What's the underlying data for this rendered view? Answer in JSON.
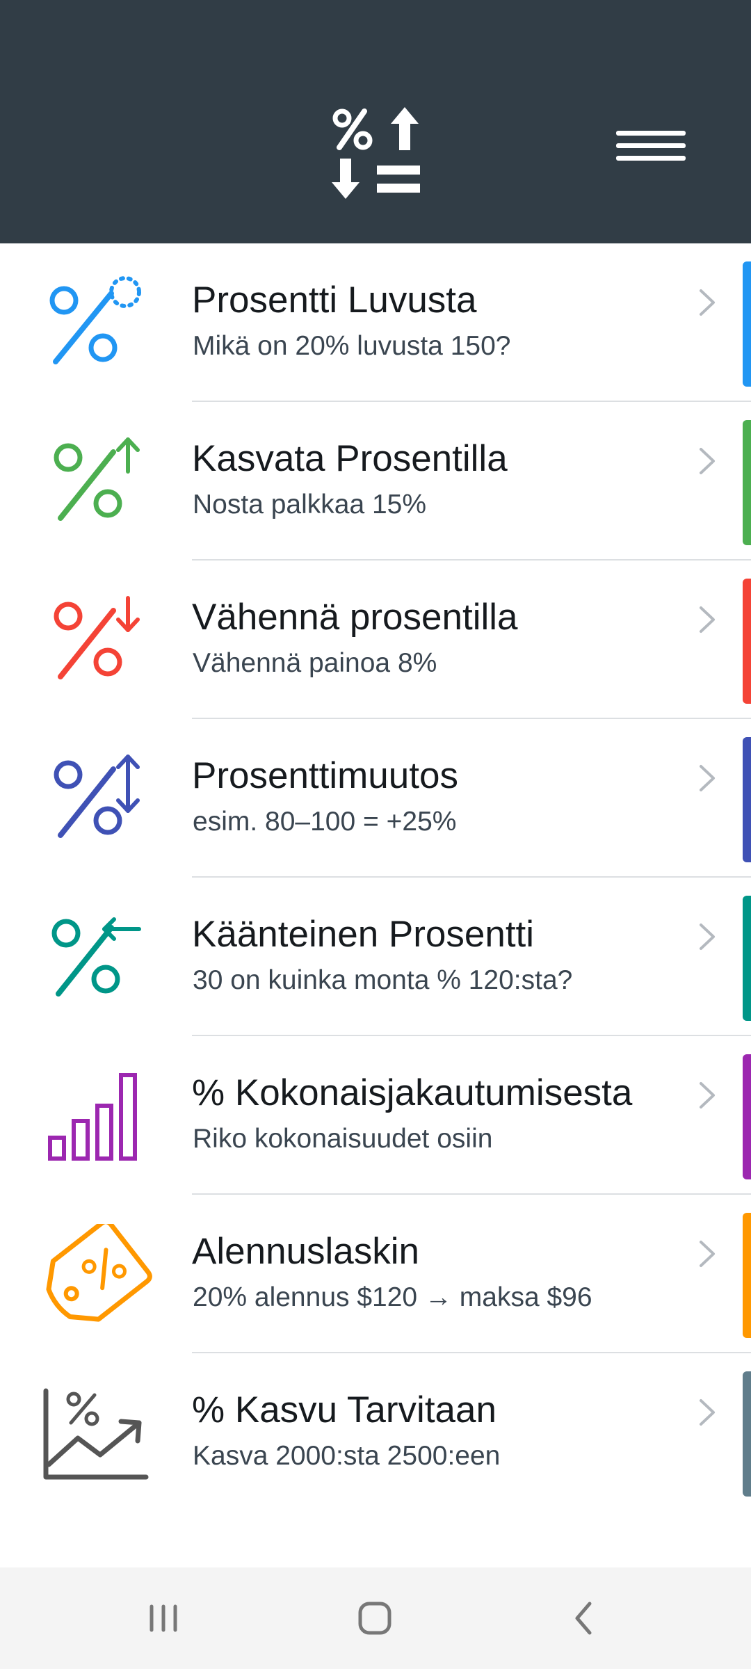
{
  "header": {
    "logo_icon": "percent-up-down-equals-icon",
    "menu_icon": "hamburger-menu-icon",
    "background": "#313d46"
  },
  "items": [
    {
      "title": "Prosentti Luvusta",
      "subtitle": "Mikä on 20% luvusta 150?",
      "accent": "#2196f3",
      "icon": "percent-of-icon"
    },
    {
      "title": "Kasvata Prosentilla",
      "subtitle": "Nosta palkkaa 15%",
      "accent": "#4caf50",
      "icon": "percent-increase-icon"
    },
    {
      "title": "Vähennä prosentilla",
      "subtitle": "Vähennä painoa 8%",
      "accent": "#f44336",
      "icon": "percent-decrease-icon"
    },
    {
      "title": "Prosenttimuutos",
      "subtitle": "esim. 80–100 = +25%",
      "accent": "#3f51b5",
      "icon": "percent-change-icon"
    },
    {
      "title": "Käänteinen Prosentti",
      "subtitle": "30 on kuinka monta % 120:sta?",
      "accent": "#009688",
      "icon": "reverse-percent-icon"
    },
    {
      "title": "% Kokonaisjakautumisesta",
      "subtitle": "Riko kokonaisuudet osiin",
      "accent": "#9c27b0",
      "icon": "bar-chart-icon"
    },
    {
      "title": "Alennuslaskin",
      "subtitle": "20% alennus $120 → maksa $96",
      "accent": "#ff9800",
      "icon": "discount-tag-icon"
    },
    {
      "title": "% Kasvu Tarvitaan",
      "subtitle": "Kasva 2000:sta 2500:een",
      "accent": "#607d8b",
      "icon": "growth-chart-icon"
    }
  ],
  "navbar": {
    "recent_icon": "recent-apps-icon",
    "home_icon": "home-icon",
    "back_icon": "back-icon"
  }
}
